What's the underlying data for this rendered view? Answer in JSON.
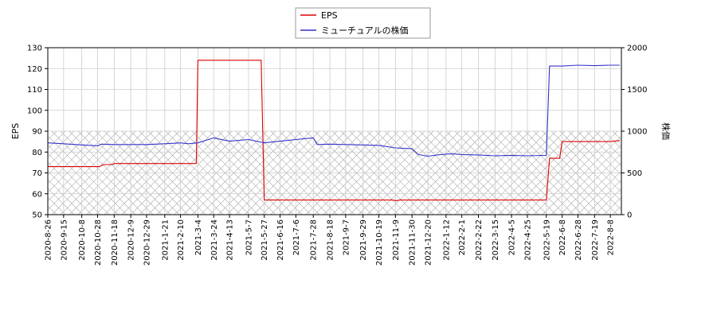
{
  "chart_data": {
    "type": "line",
    "legend": {
      "placement": "top-center"
    },
    "grid": true,
    "hatched_band": {
      "y_from": 0,
      "y_to": 1000,
      "axis": "right"
    },
    "x_ticks": [
      "2020-8-26",
      "2020-9-15",
      "2020-10-8",
      "2020-10-28",
      "2020-11-18",
      "2020-12-9",
      "2020-12-29",
      "2021-1-21",
      "2021-2-10",
      "2021-3-4",
      "2021-3-24",
      "2021-4-13",
      "2021-5-7",
      "2021-5-27",
      "2021-6-16",
      "2021-7-6",
      "2021-7-28",
      "2021-8-18",
      "2021-9-7",
      "2021-9-29",
      "2021-10-19",
      "2021-11-9",
      "2021-11-30",
      "2021-12-20",
      "2022-1-12",
      "2022-2-1",
      "2022-2-22",
      "2022-3-15",
      "2022-4-5",
      "2022-4-25",
      "2022-5-19",
      "2022-6-8",
      "2022-6-28",
      "2022-7-19",
      "2022-8-8"
    ],
    "y_left": {
      "label": "EPS",
      "ylim": [
        50,
        130
      ],
      "ticks": [
        50,
        60,
        70,
        80,
        90,
        100,
        110,
        120,
        130
      ]
    },
    "y_right": {
      "label": "株価",
      "ylim": [
        0,
        2000
      ],
      "ticks": [
        0,
        500,
        1000,
        1500,
        2000
      ]
    },
    "series": [
      {
        "name": "EPS",
        "color": "#dd0000",
        "axis": "left",
        "points": [
          [
            "2020-8-26",
            73
          ],
          [
            "2020-10-30",
            73
          ],
          [
            "2020-11-5",
            74
          ],
          [
            "2020-11-16",
            74
          ],
          [
            "2020-11-18",
            74.5
          ],
          [
            "2021-3-2",
            74.5
          ],
          [
            "2021-3-4",
            124
          ],
          [
            "2021-5-23",
            124
          ],
          [
            "2021-5-27",
            57
          ],
          [
            "2021-11-5",
            57
          ],
          [
            "2021-11-10",
            56.7
          ],
          [
            "2021-11-15",
            57
          ],
          [
            "2022-5-19",
            57
          ],
          [
            "2022-5-23",
            77
          ],
          [
            "2022-6-5",
            77
          ],
          [
            "2022-6-8",
            85
          ],
          [
            "2022-8-8",
            85
          ],
          [
            "2022-8-20",
            85.5
          ]
        ]
      },
      {
        "name": "ミューチュアルの株価",
        "color": "#3333cc",
        "axis": "right",
        "points": [
          [
            "2020-8-26",
            860
          ],
          [
            "2020-9-15",
            850
          ],
          [
            "2020-10-8",
            835
          ],
          [
            "2020-10-28",
            825
          ],
          [
            "2020-11-2",
            845
          ],
          [
            "2020-11-18",
            840
          ],
          [
            "2020-12-9",
            840
          ],
          [
            "2020-12-29",
            840
          ],
          [
            "2021-1-21",
            850
          ],
          [
            "2021-2-10",
            860
          ],
          [
            "2021-2-20",
            850
          ],
          [
            "2021-3-4",
            860
          ],
          [
            "2021-3-24",
            920
          ],
          [
            "2021-4-13",
            880
          ],
          [
            "2021-5-7",
            900
          ],
          [
            "2021-5-27",
            860
          ],
          [
            "2021-6-16",
            880
          ],
          [
            "2021-7-6",
            900
          ],
          [
            "2021-7-28",
            920
          ],
          [
            "2021-8-2",
            840
          ],
          [
            "2021-8-18",
            845
          ],
          [
            "2021-9-7",
            840
          ],
          [
            "2021-9-29",
            835
          ],
          [
            "2021-10-19",
            830
          ],
          [
            "2021-11-9",
            800
          ],
          [
            "2021-11-30",
            790
          ],
          [
            "2021-12-8",
            720
          ],
          [
            "2021-12-20",
            700
          ],
          [
            "2022-1-5",
            720
          ],
          [
            "2022-1-20",
            730
          ],
          [
            "2022-2-1",
            720
          ],
          [
            "2022-2-22",
            715
          ],
          [
            "2022-3-15",
            705
          ],
          [
            "2022-4-5",
            710
          ],
          [
            "2022-4-25",
            705
          ],
          [
            "2022-5-19",
            710
          ],
          [
            "2022-5-23",
            1780
          ],
          [
            "2022-6-8",
            1780
          ],
          [
            "2022-6-28",
            1790
          ],
          [
            "2022-7-19",
            1785
          ],
          [
            "2022-8-8",
            1790
          ],
          [
            "2022-8-20",
            1790
          ]
        ]
      }
    ]
  }
}
